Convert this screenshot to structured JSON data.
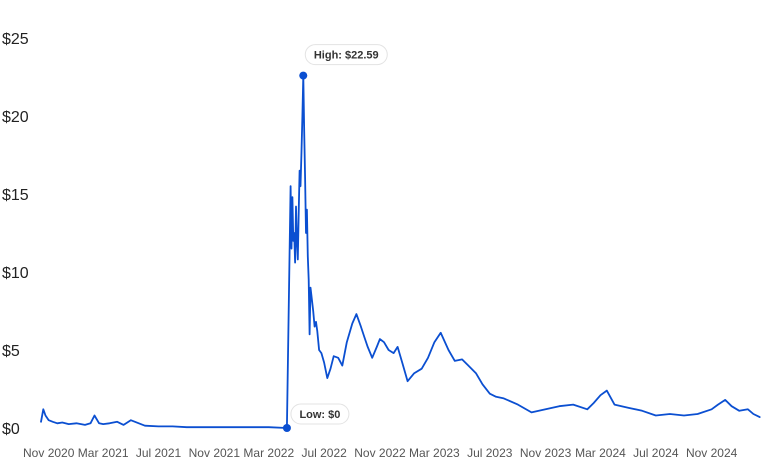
{
  "chart_data": {
    "type": "line",
    "title": "",
    "xlabel": "",
    "ylabel": "",
    "ylim": [
      0,
      25
    ],
    "y_ticks": [
      0,
      5,
      10,
      15,
      20,
      25
    ],
    "y_tick_labels": [
      "$0",
      "$5",
      "$10",
      "$15",
      "$20",
      "$25"
    ],
    "x_ticks": [
      "2020-11-01",
      "2021-03-01",
      "2021-07-01",
      "2021-11-01",
      "2022-03-01",
      "2022-07-01",
      "2022-11-01",
      "2023-03-01",
      "2023-07-01",
      "2023-11-01",
      "2024-03-01",
      "2024-07-01",
      "2024-11-01"
    ],
    "x_tick_labels": [
      "Nov 2020",
      "Mar 2021",
      "Jul 2021",
      "Nov 2021",
      "Mar 2022",
      "Jul 2022",
      "Nov 2022",
      "Mar 2023",
      "Jul 2023",
      "Nov 2023",
      "Mar 2024",
      "Jul 2024",
      "Nov 2024"
    ],
    "grid": false,
    "line_color": "#0b4fd1",
    "series": [
      {
        "x": [
          "2020-10-15",
          "2020-10-20",
          "2020-10-25",
          "2020-11-01",
          "2020-11-10",
          "2020-11-20",
          "2020-12-01",
          "2020-12-15",
          "2021-01-01",
          "2021-01-20",
          "2021-02-01",
          "2021-02-10",
          "2021-02-20",
          "2021-03-01",
          "2021-03-15",
          "2021-04-01",
          "2021-04-15",
          "2021-05-01",
          "2021-06-01",
          "2021-07-01",
          "2021-08-01",
          "2021-09-01",
          "2021-10-01",
          "2021-11-01",
          "2021-12-01",
          "2022-01-01",
          "2022-02-01",
          "2022-03-01",
          "2022-04-10",
          "2022-04-18",
          "2022-04-20",
          "2022-04-22",
          "2022-04-24",
          "2022-04-26",
          "2022-04-28",
          "2022-04-30",
          "2022-05-02",
          "2022-05-04",
          "2022-05-06",
          "2022-05-08",
          "2022-05-10",
          "2022-05-12",
          "2022-05-14",
          "2022-05-16",
          "2022-05-18",
          "2022-05-20",
          "2022-05-22",
          "2022-05-24",
          "2022-05-26",
          "2022-05-28",
          "2022-05-30",
          "2022-06-01",
          "2022-06-03",
          "2022-06-05",
          "2022-06-07",
          "2022-06-10",
          "2022-06-13",
          "2022-06-16",
          "2022-06-20",
          "2022-06-25",
          "2022-07-01",
          "2022-07-08",
          "2022-07-15",
          "2022-07-22",
          "2022-08-01",
          "2022-08-10",
          "2022-08-20",
          "2022-09-01",
          "2022-09-10",
          "2022-09-20",
          "2022-09-28",
          "2022-10-05",
          "2022-10-15",
          "2022-10-25",
          "2022-11-01",
          "2022-11-10",
          "2022-11-20",
          "2022-12-01",
          "2022-12-10",
          "2022-12-20",
          "2023-01-01",
          "2023-01-15",
          "2023-02-01",
          "2023-02-15",
          "2023-03-01",
          "2023-03-15",
          "2023-04-01",
          "2023-04-15",
          "2023-05-01",
          "2023-05-15",
          "2023-06-01",
          "2023-06-15",
          "2023-07-01",
          "2023-07-15",
          "2023-08-01",
          "2023-09-01",
          "2023-10-01",
          "2023-11-01",
          "2023-12-01",
          "2024-01-01",
          "2024-02-01",
          "2024-02-15",
          "2024-03-01",
          "2024-03-15",
          "2024-04-01",
          "2024-05-01",
          "2024-06-01",
          "2024-07-01",
          "2024-08-01",
          "2024-09-01",
          "2024-10-01",
          "2024-11-01",
          "2024-11-15",
          "2024-12-01",
          "2024-12-15",
          "2025-01-01",
          "2025-01-20",
          "2025-02-01",
          "2025-02-15"
        ],
        "y": [
          0.4,
          1.2,
          0.8,
          0.5,
          0.4,
          0.3,
          0.35,
          0.25,
          0.3,
          0.2,
          0.3,
          0.8,
          0.3,
          0.25,
          0.3,
          0.4,
          0.2,
          0.5,
          0.15,
          0.1,
          0.1,
          0.05,
          0.05,
          0.05,
          0.05,
          0.05,
          0.05,
          0.05,
          0.0,
          15.5,
          11.5,
          14.8,
          12.0,
          12.5,
          10.6,
          14.2,
          12.0,
          10.8,
          13.8,
          16.5,
          15.5,
          17.5,
          20.0,
          22.59,
          19.0,
          16.0,
          12.5,
          14.0,
          11.0,
          9.5,
          6.0,
          9.0,
          8.5,
          8.0,
          7.5,
          6.5,
          6.8,
          6.2,
          5.0,
          4.8,
          4.2,
          3.2,
          3.8,
          4.6,
          4.5,
          4.0,
          5.5,
          6.7,
          7.3,
          6.5,
          5.8,
          5.2,
          4.5,
          5.2,
          5.7,
          5.5,
          5.0,
          4.8,
          5.2,
          4.2,
          3.0,
          3.5,
          3.8,
          4.5,
          5.5,
          6.1,
          5.0,
          4.3,
          4.4,
          4.0,
          3.5,
          2.8,
          2.2,
          2.0,
          1.9,
          1.5,
          1.0,
          1.2,
          1.4,
          1.5,
          1.2,
          1.6,
          2.1,
          2.4,
          1.5,
          1.3,
          1.1,
          0.8,
          0.9,
          0.8,
          0.9,
          1.2,
          1.5,
          1.8,
          1.4,
          1.1,
          1.2,
          0.9,
          0.7
        ]
      }
    ],
    "annotations": [
      {
        "label": "High: $22.59",
        "x": "2022-05-16",
        "y": 22.59
      },
      {
        "label": "Low: $0",
        "x": "2022-04-10",
        "y": 0
      }
    ]
  }
}
